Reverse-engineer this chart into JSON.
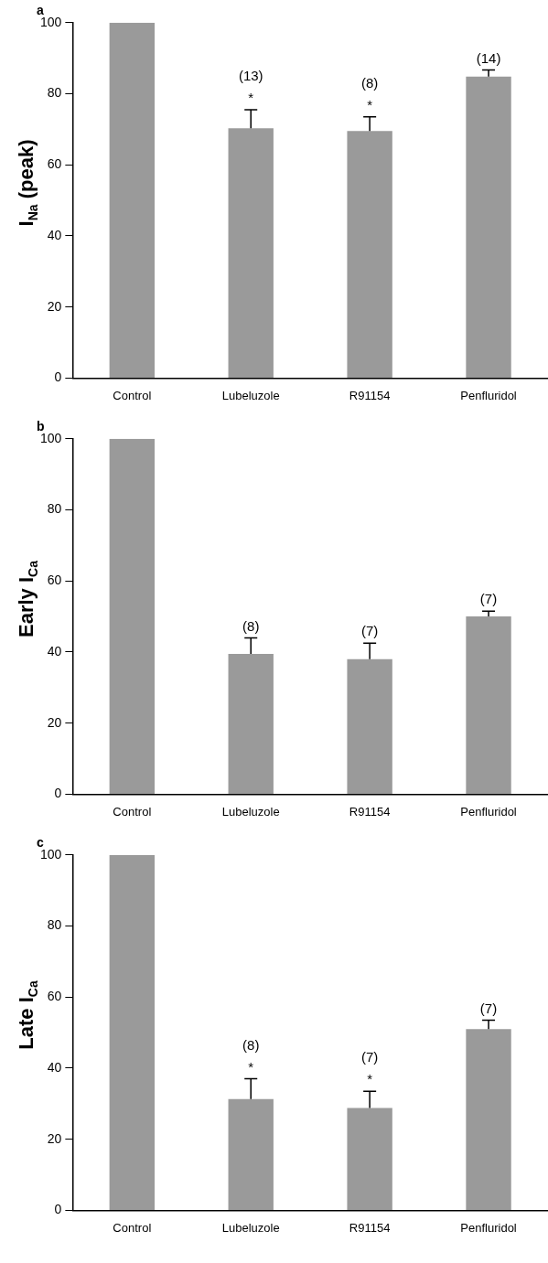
{
  "chart_data": [
    {
      "type": "bar",
      "title": "a",
      "ylabel": "I$_{Na}$ (peak)",
      "categories": [
        "Control",
        "Lubeluzole",
        "R91154",
        "Penfluridol"
      ],
      "values": [
        100,
        70.3,
        69.5,
        84.8
      ],
      "errors": [
        null,
        [
          70.3,
          75.5
        ],
        [
          69.5,
          73.5
        ],
        [
          84.8,
          86.7
        ]
      ],
      "color": "#9a9a9a",
      "ylim": [
        0,
        100
      ],
      "yticks": [
        0,
        20,
        40,
        60,
        80,
        100
      ],
      "grid": false,
      "legend": false,
      "annotations": [
        {
          "text": "(13)",
          "x": "Lubeluzole",
          "y": 75.5
        },
        {
          "text": "*",
          "x": "Lubeluzole",
          "y": 75.5
        },
        {
          "text": "(8)",
          "x": "R91154",
          "y": 73.5
        },
        {
          "text": "*",
          "x": "R91154",
          "y": 73.5
        },
        {
          "text": "(14)",
          "x": "Penfluridol",
          "y": 86.7
        }
      ]
    },
    {
      "type": "bar",
      "title": "b",
      "ylabel": "Early I$_{Ca}$",
      "categories": [
        "Control",
        "Lubeluzole",
        "R91154",
        "Penfluridol"
      ],
      "values": [
        100,
        39.5,
        38,
        50
      ],
      "errors": [
        null,
        [
          39.5,
          44
        ],
        [
          38,
          42.5
        ],
        [
          50,
          51.5
        ]
      ],
      "color": "#9a9a9a",
      "ylim": [
        0,
        100
      ],
      "yticks": [
        0,
        20,
        40,
        60,
        80,
        100
      ],
      "grid": false,
      "legend": false,
      "annotations": [
        {
          "text": "(8)",
          "x": "Lubeluzole",
          "y": 44
        },
        {
          "text": "(7)",
          "x": "R91154",
          "y": 42.5
        },
        {
          "text": "(7)",
          "x": "Penfluridol",
          "y": 51.5
        }
      ]
    },
    {
      "type": "bar",
      "title": "c",
      "ylabel": "Late I$_{Ca}$",
      "categories": [
        "Control",
        "Lubeluzole",
        "R91154",
        "Penfluridol"
      ],
      "values": [
        100,
        31.3,
        28.8,
        51
      ],
      "errors": [
        null,
        [
          31.3,
          37
        ],
        [
          28.8,
          33.5
        ],
        [
          51,
          53.5
        ]
      ],
      "color": "#9a9a9a",
      "ylim": [
        0,
        100
      ],
      "yticks": [
        0,
        20,
        40,
        60,
        80,
        100
      ],
      "grid": false,
      "legend": false,
      "annotations": [
        {
          "text": "(8)",
          "x": "Lubeluzole",
          "y": 37
        },
        {
          "text": "*",
          "x": "Lubeluzole",
          "y": 37
        },
        {
          "text": "(7)",
          "x": "R91154",
          "y": 33.5
        },
        {
          "text": "*",
          "x": "R91154",
          "y": 33.5
        },
        {
          "text": "(7)",
          "x": "Penfluridol",
          "y": 53.5
        }
      ]
    }
  ]
}
